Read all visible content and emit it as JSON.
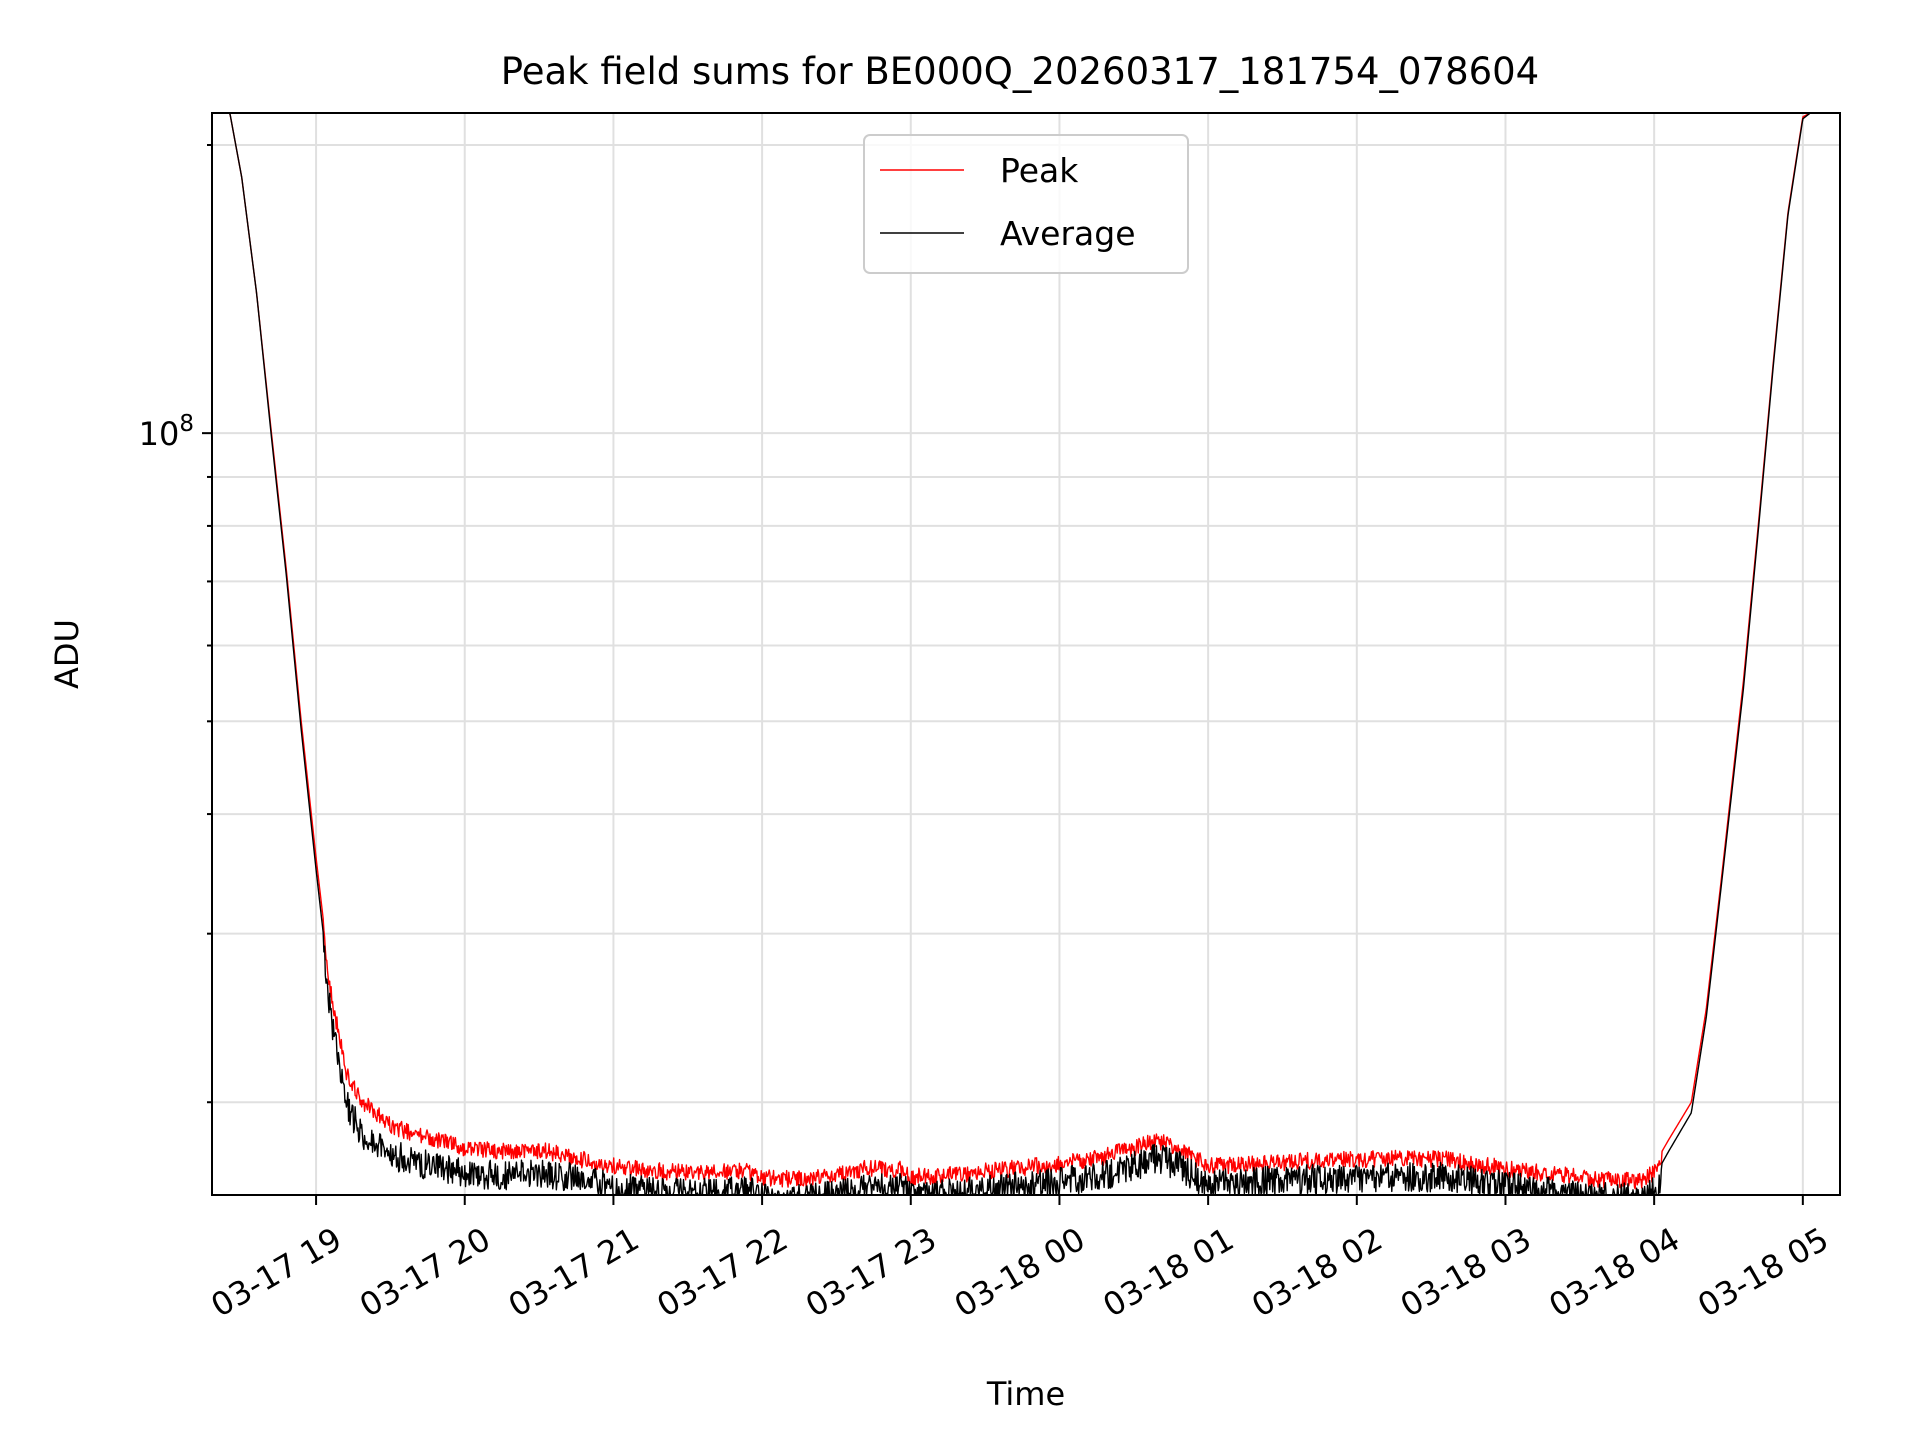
{
  "chart_data": {
    "type": "line",
    "title": "Peak field sums for BE000Q_20260317_181754_078604",
    "xlabel": "Time",
    "ylabel": "ADU",
    "yscale": "log",
    "grid": true,
    "legend_position": "top-center",
    "xlim": [
      18.3,
      29.25
    ],
    "ylim": [
      16000000,
      216000000
    ],
    "x_ticks": [
      {
        "x": 19,
        "label": "03-17 19"
      },
      {
        "x": 20,
        "label": "03-17 20"
      },
      {
        "x": 21,
        "label": "03-17 21"
      },
      {
        "x": 22,
        "label": "03-17 22"
      },
      {
        "x": 23,
        "label": "03-17 23"
      },
      {
        "x": 24,
        "label": "03-18 00"
      },
      {
        "x": 25,
        "label": "03-18 01"
      },
      {
        "x": 26,
        "label": "03-18 02"
      },
      {
        "x": 27,
        "label": "03-18 03"
      },
      {
        "x": 28,
        "label": "03-18 04"
      },
      {
        "x": 29,
        "label": "03-18 05"
      }
    ],
    "y_major_ticks": [
      {
        "value": 100000000,
        "base": "10",
        "exp": "8"
      }
    ],
    "y_minor_ticks": [
      20000000,
      30000000,
      40000000,
      50000000,
      60000000,
      70000000,
      80000000,
      90000000,
      200000000
    ],
    "x_unit_note": "hours since 2026-03-17 00:00",
    "series": [
      {
        "name": "Peak",
        "color": "#ff0000",
        "x": [
          18.3,
          18.42,
          18.5,
          18.6,
          18.7,
          18.8,
          18.9,
          19.0,
          19.1,
          19.2,
          19.3,
          19.5,
          19.7,
          20.0,
          20.3,
          20.5,
          20.7,
          21.0,
          21.3,
          21.6,
          21.9,
          22.0,
          22.3,
          22.5,
          22.7,
          22.95,
          23.0,
          23.3,
          23.6,
          24.0,
          24.3,
          24.5,
          24.65,
          24.8,
          25.0,
          25.3,
          25.6,
          26.0,
          26.3,
          26.6,
          27.0,
          27.3,
          27.6,
          27.9,
          28.0,
          28.1,
          28.25,
          28.35,
          28.45,
          28.6,
          28.7,
          28.8,
          28.9,
          29.0,
          29.05
        ],
        "y": [
          216000000,
          216000000,
          185000000,
          140000000,
          100000000,
          72000000,
          50000000,
          36000000,
          26500000,
          22000000,
          20500000,
          19300000,
          18800000,
          18300000,
          18100000,
          18200000,
          17900000,
          17500000,
          17300000,
          17200000,
          17300000,
          17000000,
          16950000,
          17100000,
          17400000,
          17350000,
          17050000,
          17150000,
          17350000,
          17600000,
          17900000,
          18300000,
          18600000,
          18300000,
          17500000,
          17600000,
          17700000,
          17800000,
          17850000,
          17800000,
          17400000,
          17200000,
          16950000,
          16900000,
          17200000,
          18300000,
          20000000,
          25000000,
          34000000,
          55000000,
          80000000,
          118000000,
          170000000,
          214000000,
          216000000
        ]
      },
      {
        "name": "Average",
        "color": "#000000",
        "x": [
          18.3,
          18.42,
          18.5,
          18.6,
          18.7,
          18.8,
          18.9,
          19.0,
          19.1,
          19.2,
          19.3,
          19.5,
          19.7,
          20.0,
          20.3,
          20.5,
          20.7,
          21.0,
          21.3,
          21.6,
          21.9,
          22.0,
          22.3,
          22.5,
          22.7,
          22.95,
          23.0,
          23.3,
          23.6,
          24.0,
          24.3,
          24.5,
          24.65,
          24.8,
          25.0,
          25.3,
          25.6,
          26.0,
          26.3,
          26.6,
          27.0,
          27.3,
          27.6,
          27.9,
          28.0,
          28.1,
          28.25,
          28.35,
          28.45,
          28.6,
          28.7,
          28.8,
          28.9,
          29.0,
          29.05
        ],
        "y": [
          216000000,
          216000000,
          185000000,
          140000000,
          99000000,
          71000000,
          49000000,
          35000000,
          25500000,
          20800000,
          19200000,
          18300000,
          17900000,
          17500000,
          17400000,
          17500000,
          17300000,
          16900000,
          16700000,
          16650000,
          16750000,
          16500000,
          16400000,
          16600000,
          16850000,
          16850000,
          16500000,
          16650000,
          16850000,
          17100000,
          17400000,
          17800000,
          18150000,
          17800000,
          17000000,
          17100000,
          17200000,
          17300000,
          17350000,
          17300000,
          16950000,
          16700000,
          16500000,
          16450000,
          16700000,
          17800000,
          19500000,
          24500000,
          33500000,
          54000000,
          79000000,
          117000000,
          169000000,
          213000000,
          216000000
        ]
      }
    ]
  }
}
